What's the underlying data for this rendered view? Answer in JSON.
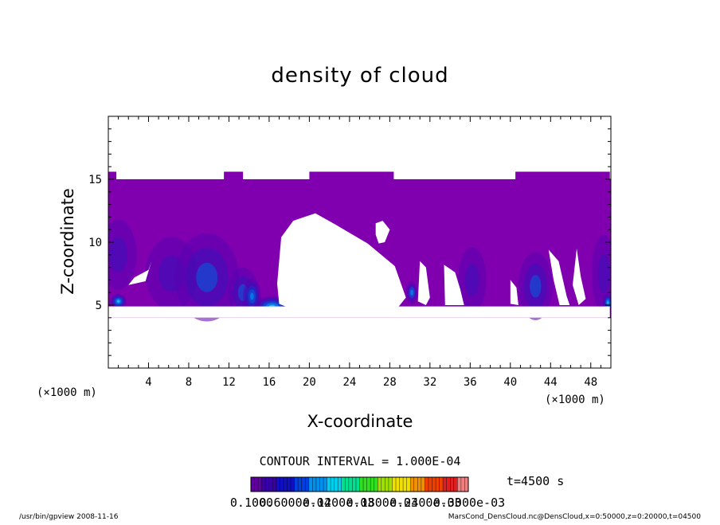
{
  "chart_data": {
    "type": "heatmap",
    "title": "density of cloud",
    "xlabel": "X-coordinate",
    "ylabel": "Z-coordinate",
    "x_unit": "(×1000 m)",
    "z_unit": "(×1000 m)",
    "xlim": [
      0,
      50
    ],
    "ylim": [
      0,
      20
    ],
    "x_ticks": [
      "4",
      "8",
      "12",
      "16",
      "20",
      "24",
      "28",
      "32",
      "36",
      "40",
      "44",
      "48"
    ],
    "y_ticks": [
      "5",
      "10",
      "15"
    ],
    "contour_interval": "CONTOUR INTERVAL = 1.000E-04",
    "time_label": "t=4500 s",
    "colorbar_labels": [
      "0.1000",
      "0.6000e-04",
      "0.1200e-03",
      "0.1800e-03",
      "0.2400e-03",
      "0.3000e-03"
    ],
    "cloud_layer": {
      "bottom_km": 4,
      "top_km": 15,
      "top_bumps_km": 15.6
    },
    "regions": [
      {
        "name": "clear",
        "polygon": [
          [
            17.0,
            5.1
          ],
          [
            16.8,
            6.7
          ],
          [
            17.2,
            10.4
          ],
          [
            18.4,
            11.7
          ],
          [
            20.6,
            12.3
          ],
          [
            22.6,
            11.4
          ],
          [
            25.8,
            9.9
          ],
          [
            28.5,
            8.1
          ],
          [
            29.6,
            5.6
          ],
          [
            28.2,
            4.2
          ],
          [
            20,
            4.1
          ]
        ]
      },
      {
        "name": "clear",
        "polygon": [
          [
            26.6,
            10.6
          ],
          [
            26.6,
            11.5
          ],
          [
            27.3,
            11.7
          ],
          [
            28.0,
            11.0
          ],
          [
            27.5,
            10.0
          ],
          [
            26.9,
            9.9
          ]
        ]
      },
      {
        "name": "clear",
        "polygon": [
          [
            4.3,
            8.5
          ],
          [
            3.7,
            6.9
          ],
          [
            2.0,
            6.6
          ],
          [
            2.6,
            7.2
          ],
          [
            4.0,
            7.8
          ]
        ]
      },
      {
        "name": "clear",
        "polygon": [
          [
            31.0,
            8.5
          ],
          [
            30.8,
            5.3
          ],
          [
            31.6,
            5.0
          ],
          [
            32.0,
            5.6
          ],
          [
            31.6,
            8.0
          ]
        ]
      },
      {
        "name": "clear",
        "polygon": [
          [
            33.4,
            8.2
          ],
          [
            33.5,
            5.0
          ],
          [
            35.4,
            5.0
          ],
          [
            35.0,
            6.3
          ],
          [
            34.5,
            7.6
          ]
        ]
      },
      {
        "name": "clear",
        "polygon": [
          [
            40.0,
            7.0
          ],
          [
            40.0,
            5.1
          ],
          [
            40.8,
            5.0
          ],
          [
            40.6,
            6.4
          ]
        ]
      },
      {
        "name": "clear",
        "polygon": [
          [
            43.8,
            9.4
          ],
          [
            44.8,
            8.5
          ],
          [
            45.6,
            5.7
          ],
          [
            45.9,
            5.0
          ],
          [
            44.9,
            5.0
          ],
          [
            44.3,
            7.0
          ]
        ]
      },
      {
        "name": "clear",
        "polygon": [
          [
            46.6,
            9.5
          ],
          [
            47.0,
            7.3
          ],
          [
            47.5,
            5.5
          ],
          [
            46.8,
            5.0
          ],
          [
            46.2,
            6.6
          ]
        ]
      },
      {
        "name": "clear",
        "polygon": [
          [
            0,
            4.0
          ],
          [
            49.9,
            4.0
          ],
          [
            49.9,
            4.9
          ],
          [
            0,
            4.9
          ]
        ]
      }
    ],
    "blobs": [
      {
        "x": 1.0,
        "z": 9.0,
        "rx": 1.8,
        "rz": 2.8,
        "level": 0.1
      },
      {
        "x": 6.3,
        "z": 7.5,
        "rx": 2.6,
        "rz": 2.9,
        "level": 0.15
      },
      {
        "x": 9.8,
        "z": 7.2,
        "rx": 3.2,
        "rz": 3.5,
        "level": 0.18
      },
      {
        "x": 13.4,
        "z": 6.0,
        "rx": 1.5,
        "rz": 2.0,
        "level": 0.22
      },
      {
        "x": 16.3,
        "z": 4.9,
        "rx": 1.9,
        "rz": 0.8,
        "level": 0.45
      },
      {
        "x": 14.3,
        "z": 5.7,
        "rx": 0.9,
        "rz": 1.4,
        "level": 0.35
      },
      {
        "x": 30.2,
        "z": 6.0,
        "rx": 0.6,
        "rz": 0.9,
        "level": 0.3
      },
      {
        "x": 36.2,
        "z": 7.0,
        "rx": 1.4,
        "rz": 2.6,
        "level": 0.12
      },
      {
        "x": 42.5,
        "z": 6.5,
        "rx": 1.7,
        "rz": 2.7,
        "level": 0.2
      },
      {
        "x": 49.3,
        "z": 7.5,
        "rx": 1.2,
        "rz": 3.1,
        "level": 0.15
      },
      {
        "x": 49.7,
        "z": 5.2,
        "rx": 0.5,
        "rz": 0.7,
        "level": 0.4
      },
      {
        "x": 1.0,
        "z": 5.3,
        "rx": 0.8,
        "rz": 0.6,
        "level": 0.4
      }
    ]
  },
  "footer_left": "/usr/bin/gpview   2008-11-16",
  "footer_right": "MarsCond_DensCloud.nc@DensCloud,x=0:50000,z=0:20000,t=04500",
  "colors": {
    "base": "#8000b0",
    "levels": [
      "#8000b0",
      "#5a00b0",
      "#3a10b8",
      "#1830c8",
      "#0060e0",
      "#00a0f0",
      "#40e0ff"
    ],
    "colorbar": [
      "#6000a0",
      "#3800a8",
      "#1010c0",
      "#0040e0",
      "#0090f0",
      "#00d0f0",
      "#00e090",
      "#30e020",
      "#a0e000",
      "#f0e000",
      "#f09000",
      "#f04000",
      "#e02020",
      "#f08080"
    ]
  }
}
